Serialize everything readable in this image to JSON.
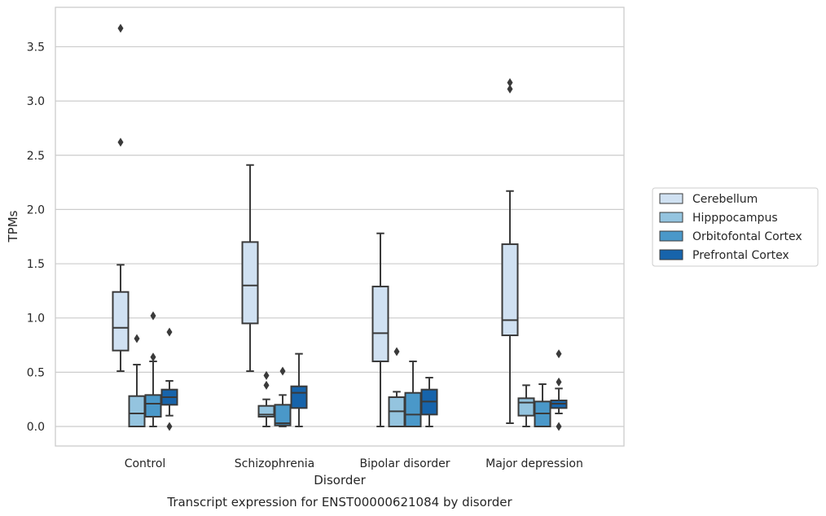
{
  "caption": "Transcript expression for ENST00000621084 by disorder",
  "chart_data": {
    "type": "box",
    "xlabel": "Disorder",
    "ylabel": "TPMs",
    "ylim": [
      -0.18,
      3.86
    ],
    "yticks": [
      0.0,
      0.5,
      1.0,
      1.5,
      2.0,
      2.5,
      3.0,
      3.5
    ],
    "ytick_labels": [
      "0.0",
      "0.5",
      "1.0",
      "1.5",
      "2.0",
      "2.5",
      "3.0",
      "3.5"
    ],
    "grid": "horizontal",
    "legend_position": "right",
    "categories": [
      "Control",
      "Schizophrenia",
      "Bipolar disorder",
      "Major depression"
    ],
    "series": [
      {
        "name": "Cerebellum",
        "color": "#d0e1f2",
        "boxes": [
          {
            "whislo": 0.51,
            "q1": 0.7,
            "med": 0.91,
            "q3": 1.24,
            "whishi": 1.49,
            "fliers": [
              2.62,
              3.67
            ]
          },
          {
            "whislo": 0.51,
            "q1": 0.95,
            "med": 1.3,
            "q3": 1.7,
            "whishi": 2.41,
            "fliers": []
          },
          {
            "whislo": 0.0,
            "q1": 0.6,
            "med": 0.86,
            "q3": 1.29,
            "whishi": 1.78,
            "fliers": []
          },
          {
            "whislo": 0.03,
            "q1": 0.84,
            "med": 0.98,
            "q3": 1.68,
            "whishi": 2.17,
            "fliers": [
              3.11,
              3.17
            ]
          }
        ]
      },
      {
        "name": "Hipppocampus",
        "color": "#94c4df",
        "boxes": [
          {
            "whislo": 0.0,
            "q1": 0.0,
            "med": 0.12,
            "q3": 0.28,
            "whishi": 0.57,
            "fliers": [
              0.81
            ]
          },
          {
            "whislo": 0.0,
            "q1": 0.09,
            "med": 0.11,
            "q3": 0.19,
            "whishi": 0.25,
            "fliers": [
              0.38,
              0.47
            ]
          },
          {
            "whislo": 0.0,
            "q1": 0.0,
            "med": 0.14,
            "q3": 0.27,
            "whishi": 0.32,
            "fliers": [
              0.69
            ]
          },
          {
            "whislo": 0.0,
            "q1": 0.1,
            "med": 0.22,
            "q3": 0.26,
            "whishi": 0.38,
            "fliers": []
          }
        ]
      },
      {
        "name": "Orbitofontal Cortex",
        "color": "#4a98c9",
        "boxes": [
          {
            "whislo": 0.0,
            "q1": 0.09,
            "med": 0.21,
            "q3": 0.29,
            "whishi": 0.6,
            "fliers": [
              0.64,
              1.02
            ]
          },
          {
            "whislo": 0.0,
            "q1": 0.01,
            "med": 0.03,
            "q3": 0.2,
            "whishi": 0.29,
            "fliers": [
              0.51
            ]
          },
          {
            "whislo": 0.0,
            "q1": 0.0,
            "med": 0.11,
            "q3": 0.31,
            "whishi": 0.6,
            "fliers": []
          },
          {
            "whislo": 0.0,
            "q1": 0.0,
            "med": 0.12,
            "q3": 0.23,
            "whishi": 0.39,
            "fliers": []
          }
        ]
      },
      {
        "name": "Prefrontal Cortex",
        "color": "#1764ab",
        "boxes": [
          {
            "whislo": 0.1,
            "q1": 0.2,
            "med": 0.27,
            "q3": 0.34,
            "whishi": 0.42,
            "fliers": [
              0.0,
              0.87
            ]
          },
          {
            "whislo": 0.0,
            "q1": 0.17,
            "med": 0.31,
            "q3": 0.37,
            "whishi": 0.67,
            "fliers": []
          },
          {
            "whislo": 0.0,
            "q1": 0.11,
            "med": 0.23,
            "q3": 0.34,
            "whishi": 0.45,
            "fliers": []
          },
          {
            "whislo": 0.12,
            "q1": 0.17,
            "med": 0.21,
            "q3": 0.24,
            "whishi": 0.35,
            "fliers": [
              0.0,
              0.41,
              0.67
            ]
          }
        ]
      }
    ]
  }
}
